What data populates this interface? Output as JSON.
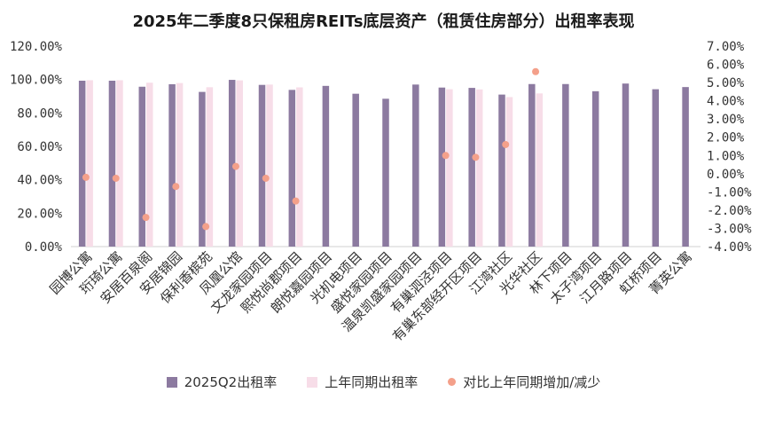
{
  "chart_data": {
    "type": "bar",
    "title": "2025年二季度8只保租房REITs底层资产（租赁住房部分）出租率表现",
    "categories": [
      "园博公寓",
      "珩琦公寓",
      "安居百泉阁",
      "安居锦园",
      "保利香槟苑",
      "凤凰公馆",
      "文龙家园项目",
      "熙悦尚郡项目",
      "朗悦嘉园项目",
      "光机电项目",
      "盛悦家园项目",
      "温泉凯盛家园项目",
      "有巢泗泾项目",
      "有巢东部经开区项目",
      "江湾社区",
      "光华社区",
      "林下项目",
      "太子湾项目",
      "江月路项目",
      "虹桥项目",
      "菁英公寓"
    ],
    "series": [
      {
        "name": "2025Q2出租率",
        "axis": "left",
        "kind": "bar",
        "color": "#8c7aa0",
        "values": [
          99.3,
          99.3,
          95.7,
          97.2,
          92.6,
          99.8,
          96.8,
          93.8,
          96.2,
          91.5,
          88.5,
          97.0,
          95.2,
          95.0,
          91.0,
          97.3,
          97.3,
          93.0,
          97.6,
          94.2,
          95.5
        ]
      },
      {
        "name": "上年同期出租率",
        "axis": "left",
        "kind": "bar",
        "color": "#f7dde8",
        "values": [
          99.6,
          99.6,
          98.1,
          97.9,
          95.4,
          99.5,
          97.0,
          95.3,
          null,
          null,
          null,
          null,
          94.2,
          94.1,
          89.5,
          91.7,
          null,
          null,
          null,
          null,
          null
        ]
      },
      {
        "name": "对比上年同期增加/减少",
        "axis": "right",
        "kind": "scatter",
        "color": "#f4a08a",
        "values": [
          -0.2,
          -0.25,
          -2.4,
          -0.7,
          -2.9,
          0.4,
          -0.25,
          -1.5,
          null,
          null,
          null,
          null,
          1.0,
          0.9,
          1.6,
          5.6,
          null,
          null,
          null,
          null,
          null
        ]
      }
    ],
    "ylim_left": [
      0,
      120
    ],
    "yticks_left": [
      "0.00%",
      "20.00%",
      "40.00%",
      "60.00%",
      "80.00%",
      "100.00%",
      "120.00%"
    ],
    "ylim_right": [
      -4,
      7
    ],
    "yticks_right": [
      "-4.00%",
      "-3.00%",
      "-2.00%",
      "-1.00%",
      "0.00%",
      "1.00%",
      "2.00%",
      "3.00%",
      "4.00%",
      "5.00%",
      "6.00%",
      "7.00%"
    ],
    "grid": false,
    "legend": "bottom"
  }
}
